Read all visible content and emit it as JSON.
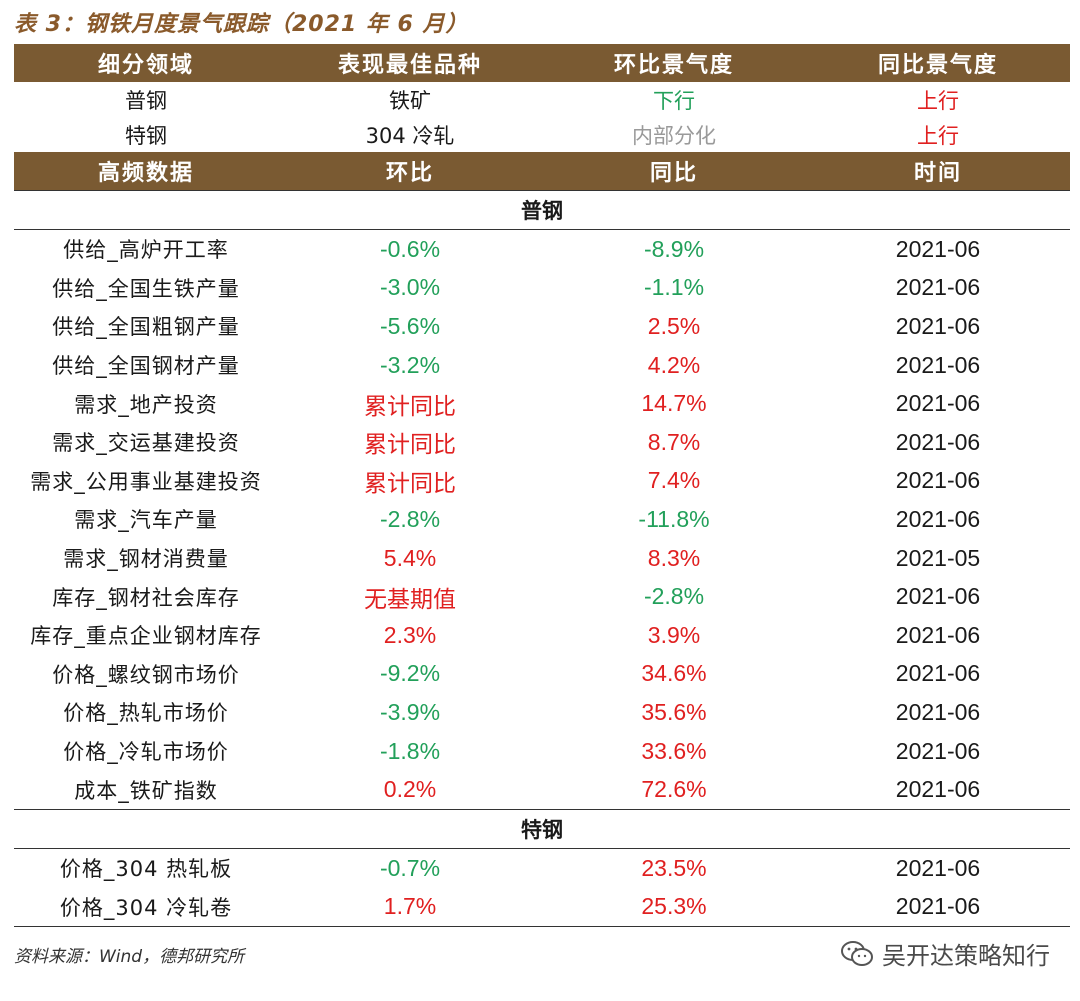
{
  "title": "表 3：钢铁月度景气跟踪（2021 年 6 月）",
  "header1": [
    "细分领域",
    "表现最佳品种",
    "环比景气度",
    "同比景气度"
  ],
  "summary": [
    {
      "domain": "普钢",
      "best": "铁矿",
      "mom": "下行",
      "mom_color": "green",
      "yoy": "上行",
      "yoy_color": "red"
    },
    {
      "domain": "特钢",
      "best": "304 冷轧",
      "mom": "内部分化",
      "mom_color": "gray",
      "yoy": "上行",
      "yoy_color": "red"
    }
  ],
  "header2": [
    "高频数据",
    "环比",
    "同比",
    "时间"
  ],
  "sections": [
    {
      "name": "普钢",
      "rows": [
        {
          "label": "供给_高炉开工率",
          "mom": "-0.6%",
          "mom_color": "green",
          "yoy": "-8.9%",
          "yoy_color": "green",
          "date": "2021-06"
        },
        {
          "label": "供给_全国生铁产量",
          "mom": "-3.0%",
          "mom_color": "green",
          "yoy": "-1.1%",
          "yoy_color": "green",
          "date": "2021-06"
        },
        {
          "label": "供给_全国粗钢产量",
          "mom": "-5.6%",
          "mom_color": "green",
          "yoy": "2.5%",
          "yoy_color": "red",
          "date": "2021-06"
        },
        {
          "label": "供给_全国钢材产量",
          "mom": "-3.2%",
          "mom_color": "green",
          "yoy": "4.2%",
          "yoy_color": "red",
          "date": "2021-06"
        },
        {
          "label": "需求_地产投资",
          "mom": "累计同比",
          "mom_color": "red",
          "yoy": "14.7%",
          "yoy_color": "red",
          "date": "2021-06"
        },
        {
          "label": "需求_交运基建投资",
          "mom": "累计同比",
          "mom_color": "red",
          "yoy": "8.7%",
          "yoy_color": "red",
          "date": "2021-06"
        },
        {
          "label": "需求_公用事业基建投资",
          "mom": "累计同比",
          "mom_color": "red",
          "yoy": "7.4%",
          "yoy_color": "red",
          "date": "2021-06"
        },
        {
          "label": "需求_汽车产量",
          "mom": "-2.8%",
          "mom_color": "green",
          "yoy": "-11.8%",
          "yoy_color": "green",
          "date": "2021-06"
        },
        {
          "label": "需求_钢材消费量",
          "mom": "5.4%",
          "mom_color": "red",
          "yoy": "8.3%",
          "yoy_color": "red",
          "date": "2021-05"
        },
        {
          "label": "库存_钢材社会库存",
          "mom": "无基期值",
          "mom_color": "red",
          "yoy": "-2.8%",
          "yoy_color": "green",
          "date": "2021-06"
        },
        {
          "label": "库存_重点企业钢材库存",
          "mom": "2.3%",
          "mom_color": "red",
          "yoy": "3.9%",
          "yoy_color": "red",
          "date": "2021-06"
        },
        {
          "label": "价格_螺纹钢市场价",
          "mom": "-9.2%",
          "mom_color": "green",
          "yoy": "34.6%",
          "yoy_color": "red",
          "date": "2021-06"
        },
        {
          "label": "价格_热轧市场价",
          "mom": "-3.9%",
          "mom_color": "green",
          "yoy": "35.6%",
          "yoy_color": "red",
          "date": "2021-06"
        },
        {
          "label": "价格_冷轧市场价",
          "mom": "-1.8%",
          "mom_color": "green",
          "yoy": "33.6%",
          "yoy_color": "red",
          "date": "2021-06"
        },
        {
          "label": "成本_铁矿指数",
          "mom": "0.2%",
          "mom_color": "red",
          "yoy": "72.6%",
          "yoy_color": "red",
          "date": "2021-06"
        }
      ]
    },
    {
      "name": "特钢",
      "rows": [
        {
          "label": "价格_304 热轧板",
          "mom": "-0.7%",
          "mom_color": "green",
          "yoy": "23.5%",
          "yoy_color": "red",
          "date": "2021-06"
        },
        {
          "label": "价格_304 冷轧卷",
          "mom": "1.7%",
          "mom_color": "red",
          "yoy": "25.3%",
          "yoy_color": "red",
          "date": "2021-06"
        }
      ]
    }
  ],
  "source": "资料来源：Wind，德邦研究所",
  "watermark": "吴开达策略知行",
  "colors": {
    "header_bg": "#7a5a32",
    "title": "#8a5a2b",
    "green": "#22a05a",
    "red": "#e02020",
    "gray": "#9a9a9a"
  }
}
